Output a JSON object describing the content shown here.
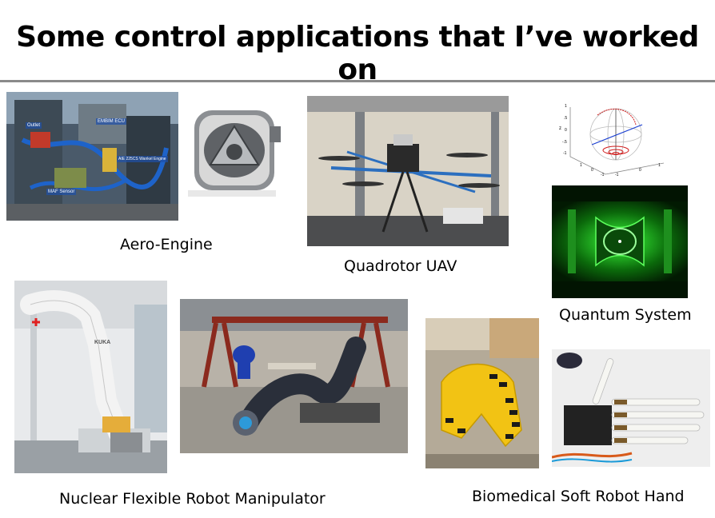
{
  "slide": {
    "title": "Some control applications that I’ve worked on"
  },
  "captions": {
    "aero_engine": "Aero-Engine",
    "quadrotor": "Quadrotor UAV",
    "quantum": "Quantum System",
    "nuclear": "Nuclear Flexible Robot Manipulator",
    "biomedical": "Biomedical Soft Robot Hand"
  },
  "engine_labels": {
    "outlet": "Outlet",
    "ecu": "EMBIM ECU",
    "engine": "AIE 225CS Wankel Engine",
    "maf": "MAF Sensor"
  },
  "bloch_labels": {
    "z_ticks": [
      "1",
      ".5",
      "0",
      "-.5",
      "-1"
    ],
    "x_ticks": [
      "0",
      "1",
      "-1"
    ],
    "y_ticks": [
      "-1",
      "0",
      "1"
    ],
    "z_axis": "z"
  },
  "robot_labels": {
    "brand": "KUKA"
  }
}
